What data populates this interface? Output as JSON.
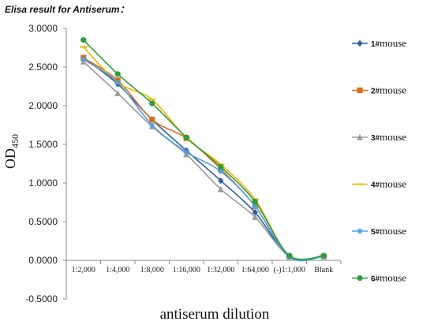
{
  "chart_data": {
    "type": "line",
    "title": "Elisa result for Antiserum：",
    "xlabel": "antiserum dilution",
    "ylabel_main": "OD",
    "ylabel_sub": "450",
    "categories": [
      "1:2,000",
      "1:4,000",
      "1:8,000",
      "1:16,000",
      "1:32,000",
      "1:64,000",
      "(-)1:1,000",
      "Blank"
    ],
    "ylim": [
      -0.5,
      3.0
    ],
    "yticks": [
      "3.0000",
      "2.5000",
      "2.0000",
      "1.5000",
      "1.0000",
      "0.5000",
      "0.0000",
      "-0.5000"
    ],
    "grid": false,
    "legend_position": "right",
    "series": [
      {
        "name_num": "1#",
        "name_text": "mouse",
        "color": "#2e5c9e",
        "marker": "diamond",
        "values": [
          2.62,
          2.28,
          1.82,
          1.42,
          1.03,
          0.62,
          0.05,
          0.05
        ]
      },
      {
        "name_num": "2#",
        "name_text": "mouse",
        "color": "#e06c1f",
        "marker": "square",
        "values": [
          2.62,
          2.33,
          1.82,
          1.58,
          1.18,
          0.7,
          0.05,
          0.05
        ]
      },
      {
        "name_num": "3#",
        "name_text": "mouse",
        "color": "#9b9b9b",
        "marker": "triangle",
        "values": [
          2.57,
          2.16,
          1.73,
          1.37,
          0.92,
          0.56,
          0.05,
          0.05
        ]
      },
      {
        "name_num": "4#",
        "name_text": "mouse",
        "color": "#f2b400",
        "marker": "dash",
        "values": [
          2.76,
          2.3,
          2.08,
          1.58,
          1.24,
          0.79,
          0.05,
          0.06
        ]
      },
      {
        "name_num": "5#",
        "name_text": "mouse",
        "color": "#4aa3df",
        "marker": "star",
        "values": [
          2.6,
          2.3,
          1.75,
          1.4,
          1.15,
          0.7,
          0.04,
          0.05
        ]
      },
      {
        "name_num": "6#",
        "name_text": "mouse",
        "color": "#2e9d3f",
        "marker": "circle",
        "values": [
          2.85,
          2.41,
          2.03,
          1.59,
          1.21,
          0.76,
          0.06,
          0.06
        ]
      }
    ]
  }
}
